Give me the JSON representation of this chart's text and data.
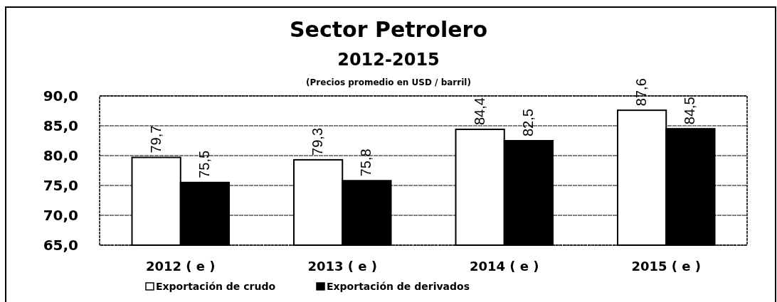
{
  "chart_data": {
    "type": "bar",
    "title": "Sector Petrolero",
    "subtitle": "2012-2015",
    "annotations": [
      "(Precios promedio en USD / barril)"
    ],
    "categories": [
      "2012 ( e )",
      "2013 ( e )",
      "2014 ( e )",
      "2015 ( e )"
    ],
    "series": [
      {
        "name": "Exportación de crudo",
        "color": "#ffffff",
        "values": [
          79.7,
          79.3,
          84.4,
          87.6
        ],
        "value_labels": [
          "79,7",
          "79,3",
          "84,4",
          "87,6"
        ]
      },
      {
        "name": "Exportación de derivados",
        "color": "#000000",
        "values": [
          75.5,
          75.8,
          82.5,
          84.5
        ],
        "value_labels": [
          "75,5",
          "75,8",
          "82,5",
          "84,5"
        ]
      }
    ],
    "ylim": [
      65,
      90
    ],
    "yticks": [
      {
        "value": 65,
        "label": "65,0"
      },
      {
        "value": 70,
        "label": "70,0"
      },
      {
        "value": 75,
        "label": "75,0"
      },
      {
        "value": 80,
        "label": "80,0"
      },
      {
        "value": 85,
        "label": "85,0"
      },
      {
        "value": 90,
        "label": "90,0"
      }
    ],
    "grid": "y",
    "legend": "bottom left"
  }
}
